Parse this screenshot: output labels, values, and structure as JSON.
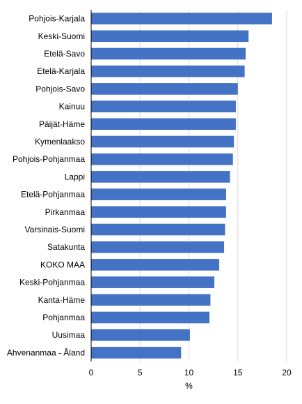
{
  "chart_data": {
    "type": "bar",
    "orientation": "horizontal",
    "title": "",
    "xlabel": "%",
    "ylabel": "",
    "xlim": [
      0,
      20
    ],
    "x_ticks": [
      0,
      5,
      10,
      15,
      20
    ],
    "grid": true,
    "bar_color": "#4472C4",
    "categories": [
      "Pohjois-Karjala",
      "Keski-Suomi",
      "Etelä-Savo",
      "Etelä-Karjala",
      "Pohjois-Savo",
      "Kainuu",
      "Päijät-Häme",
      "Kymenlaakso",
      "Pohjois-Pohjanmaa",
      "Lappi",
      "Etelä-Pohjanmaa",
      "Pirkanmaa",
      "Varsinais-Suomi",
      "Satakunta",
      "KOKO MAA",
      "Keski-Pohjanmaa",
      "Kanta-Häme",
      "Pohjanmaa",
      "Uusimaa",
      "Ahvenanmaa - Åland"
    ],
    "values": [
      18.5,
      16.1,
      15.8,
      15.7,
      15.0,
      14.8,
      14.8,
      14.6,
      14.5,
      14.2,
      13.8,
      13.8,
      13.7,
      13.6,
      13.1,
      12.6,
      12.2,
      12.1,
      10.1,
      9.2
    ]
  }
}
